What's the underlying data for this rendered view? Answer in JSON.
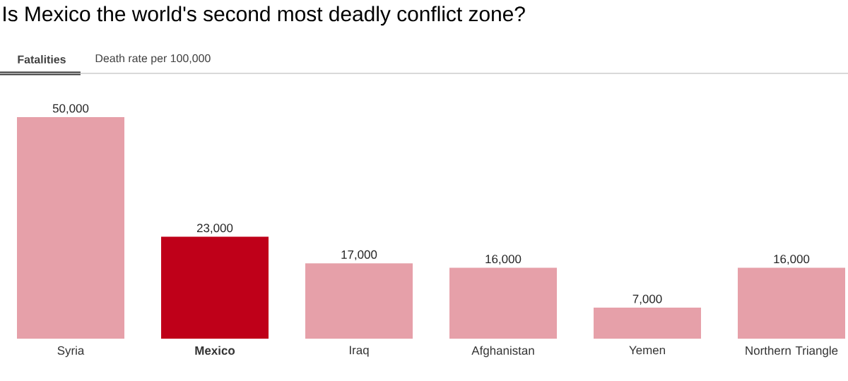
{
  "chart_data": {
    "type": "bar",
    "title": "Is Mexico the world's second most deadly conflict zone?",
    "annotations": [
      "Fatalities",
      "Death rate per 100,000"
    ],
    "categories": [
      "Syria",
      "**Mexico**",
      "Iraq",
      "Afghanistan",
      "Yemen",
      "Northern Triangle"
    ],
    "values": [
      50000,
      23000,
      17000,
      16000,
      7000,
      16000
    ],
    "value_labels": [
      "50,000",
      "23,000",
      "17,000",
      "16,000",
      "7,000",
      "16,000"
    ],
    "colors": [
      "#e6a0a9",
      "#bf0019",
      "#e6a0a9",
      "#e6a0a9",
      "#e6a0a9",
      "#e6a0a9"
    ]
  }
}
